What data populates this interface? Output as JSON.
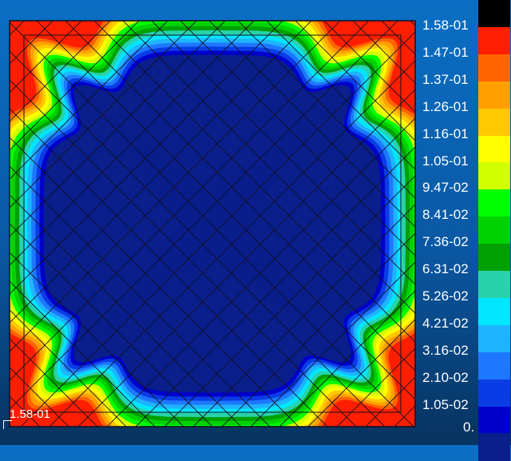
{
  "contour_plot": {
    "corner_value_label": "1.58-01",
    "band_colors": [
      "#0A1E8C",
      "#0000CC",
      "#0A3CE6",
      "#1E78FF",
      "#1EB4FF",
      "#00E6FF",
      "#28D2AA",
      "#00A000",
      "#00D200",
      "#00FF00",
      "#D2FF00",
      "#FFFF00",
      "#FFC800",
      "#FFA000",
      "#FF6400",
      "#FF1E00"
    ]
  },
  "legend": {
    "labels": [
      "1.58-01",
      "1.47-01",
      "1.37-01",
      "1.26-01",
      "1.16-01",
      "1.05-01",
      "9.47-02",
      "8.41-02",
      "7.36-02",
      "6.31-02",
      "5.26-02",
      "4.21-02",
      "3.16-02",
      "2.10-02",
      "1.05-02",
      "0."
    ],
    "colors": [
      "#000000",
      "#FF1E00",
      "#FF6400",
      "#FFA000",
      "#FFC800",
      "#FFFF00",
      "#D2FF00",
      "#00FF00",
      "#00D200",
      "#00A000",
      "#28D2AA",
      "#00E6FF",
      "#1EB4FF",
      "#1E78FF",
      "#0A3CE6",
      "#0000CC",
      "#0A1E8C"
    ]
  }
}
